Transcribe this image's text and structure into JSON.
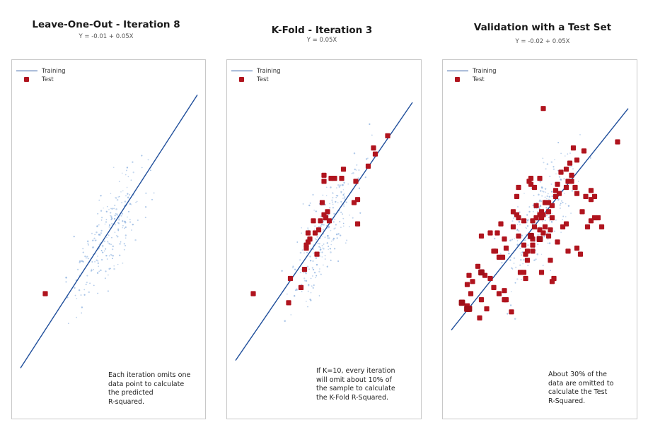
{
  "chart_data": [
    {
      "type": "scatter",
      "title": "Leave-One-Out - Iteration 8",
      "subtitle": "Y = -0.01 + 0.05X",
      "legend": [
        {
          "label": "Training",
          "mark": "line"
        },
        {
          "label": "Test",
          "mark": "square"
        }
      ],
      "legend_position": "top-left",
      "grid": false,
      "xlim": [
        0,
        100
      ],
      "ylim": [
        0,
        100
      ],
      "fit_line": {
        "intercept": 5.5,
        "slope": 0.9,
        "x": [
          0,
          100
        ]
      },
      "annotation": "Each iteration omits one\ndata point to calculate\nthe predicted\nR-squared.",
      "test": [
        [
          14,
          30
        ]
      ]
    },
    {
      "type": "scatter",
      "title": "K-Fold - Iteration 3",
      "subtitle": "Y = 0.05X",
      "legend": [
        {
          "label": "Training",
          "mark": "line"
        },
        {
          "label": "Test",
          "mark": "square"
        }
      ],
      "legend_position": "top-left",
      "grid": false,
      "xlim": [
        0,
        100
      ],
      "ylim": [
        0,
        100
      ],
      "fit_line": {
        "intercept": 8,
        "slope": 0.85,
        "x": [
          0,
          100
        ]
      },
      "annotation": "If K=10, every iteration\nwill omit about 10% of\nthe sample to calculate\nthe K-Fold R-Squared.",
      "test": [
        [
          10,
          30
        ],
        [
          31,
          35
        ],
        [
          37,
          32
        ],
        [
          30,
          27
        ],
        [
          39,
          38
        ],
        [
          41,
          47
        ],
        [
          45,
          50
        ],
        [
          41,
          50
        ],
        [
          42,
          48
        ],
        [
          40,
          46
        ],
        [
          40,
          45
        ],
        [
          46,
          43
        ],
        [
          47,
          51
        ],
        [
          44,
          54
        ],
        [
          50,
          56
        ],
        [
          52,
          57
        ],
        [
          53,
          54
        ],
        [
          51,
          55
        ],
        [
          49,
          60
        ],
        [
          48,
          54
        ],
        [
          69,
          53
        ],
        [
          67,
          60
        ],
        [
          68,
          67
        ],
        [
          75,
          72
        ],
        [
          79,
          76
        ],
        [
          78,
          78
        ],
        [
          86,
          82
        ],
        [
          61,
          71
        ],
        [
          50,
          67
        ],
        [
          50,
          69
        ],
        [
          54,
          68
        ],
        [
          56,
          68
        ],
        [
          60,
          68
        ],
        [
          69,
          61
        ],
        [
          51,
          55
        ]
      ]
    },
    {
      "type": "scatter",
      "title": "Validation with a Test Set",
      "subtitle": "Y = -0.02 + 0.05X",
      "legend": [
        {
          "label": "Training",
          "mark": "line"
        },
        {
          "label": "Test",
          "mark": "square"
        }
      ],
      "legend_position": "top-left",
      "grid": false,
      "xlim": [
        0,
        100
      ],
      "ylim": [
        0,
        100
      ],
      "fit_line": {
        "intercept": 18,
        "slope": 0.73,
        "x": [
          0,
          100
        ]
      },
      "annotation": "About 30% of the\ndata are omitted to\ncalculate the Test\nR-Squared.",
      "test": [
        [
          52,
          91
        ],
        [
          69,
          78
        ],
        [
          71,
          74
        ],
        [
          65,
          71
        ],
        [
          68,
          69
        ],
        [
          66,
          67
        ],
        [
          70,
          65
        ],
        [
          68,
          67
        ],
        [
          50,
          68
        ],
        [
          47,
          65
        ],
        [
          45,
          66
        ],
        [
          44,
          67
        ],
        [
          45,
          68
        ],
        [
          38,
          65
        ],
        [
          37,
          56
        ],
        [
          35,
          57
        ],
        [
          37,
          62
        ],
        [
          41,
          54
        ],
        [
          46,
          54
        ],
        [
          50,
          56
        ],
        [
          51,
          57
        ],
        [
          55,
          57
        ],
        [
          57,
          59
        ],
        [
          53,
          60
        ],
        [
          48,
          59
        ],
        [
          55,
          60
        ],
        [
          59,
          64
        ],
        [
          59,
          62
        ],
        [
          61,
          63
        ],
        [
          57,
          55
        ],
        [
          63,
          52
        ],
        [
          74,
          57
        ],
        [
          76,
          62
        ],
        [
          79,
          64
        ],
        [
          81,
          62
        ],
        [
          79,
          61
        ],
        [
          71,
          63
        ],
        [
          60,
          66
        ],
        [
          62,
          70
        ],
        [
          65,
          65
        ],
        [
          35,
          52
        ],
        [
          28,
          53
        ],
        [
          26,
          50
        ],
        [
          22,
          50
        ],
        [
          17,
          49
        ],
        [
          25,
          44
        ],
        [
          31,
          45
        ],
        [
          30,
          48
        ],
        [
          24,
          44
        ],
        [
          29,
          42
        ],
        [
          27,
          42
        ],
        [
          38,
          55
        ],
        [
          38,
          49
        ],
        [
          47,
          52
        ],
        [
          48,
          55
        ],
        [
          53,
          52
        ],
        [
          46,
          48
        ],
        [
          46,
          46
        ],
        [
          46,
          44
        ],
        [
          51,
          55
        ],
        [
          52,
          56
        ],
        [
          56,
          51
        ],
        [
          50,
          51
        ],
        [
          52,
          50
        ],
        [
          55,
          49
        ],
        [
          60,
          47
        ],
        [
          65,
          53
        ],
        [
          19,
          36
        ],
        [
          10,
          36
        ],
        [
          12,
          34
        ],
        [
          9,
          33
        ],
        [
          11,
          30
        ],
        [
          9,
          26
        ],
        [
          17,
          28
        ],
        [
          16,
          22
        ],
        [
          27,
          30
        ],
        [
          31,
          28
        ],
        [
          30,
          28
        ],
        [
          34,
          24
        ],
        [
          39,
          37
        ],
        [
          41,
          37
        ],
        [
          43,
          41
        ],
        [
          51,
          37
        ],
        [
          42,
          35
        ],
        [
          56,
          41
        ],
        [
          15,
          39
        ],
        [
          22,
          35
        ],
        [
          24,
          32
        ],
        [
          30,
          31
        ],
        [
          20,
          25
        ],
        [
          66,
          44
        ],
        [
          73,
          43
        ],
        [
          77,
          52
        ],
        [
          79,
          54
        ],
        [
          81,
          55
        ],
        [
          83,
          55
        ],
        [
          85,
          52
        ],
        [
          71,
          45
        ],
        [
          58,
          35
        ],
        [
          57,
          34
        ],
        [
          75,
          77
        ],
        [
          94,
          80
        ],
        [
          67,
          73
        ],
        [
          41,
          46
        ],
        [
          42,
          43
        ],
        [
          43,
          44
        ]
      ],
      "test_large": [
        [
          6,
          27
        ],
        [
          9,
          25
        ],
        [
          10,
          25
        ],
        [
          45,
          49
        ],
        [
          50,
          48
        ],
        [
          17,
          37
        ]
      ]
    }
  ]
}
